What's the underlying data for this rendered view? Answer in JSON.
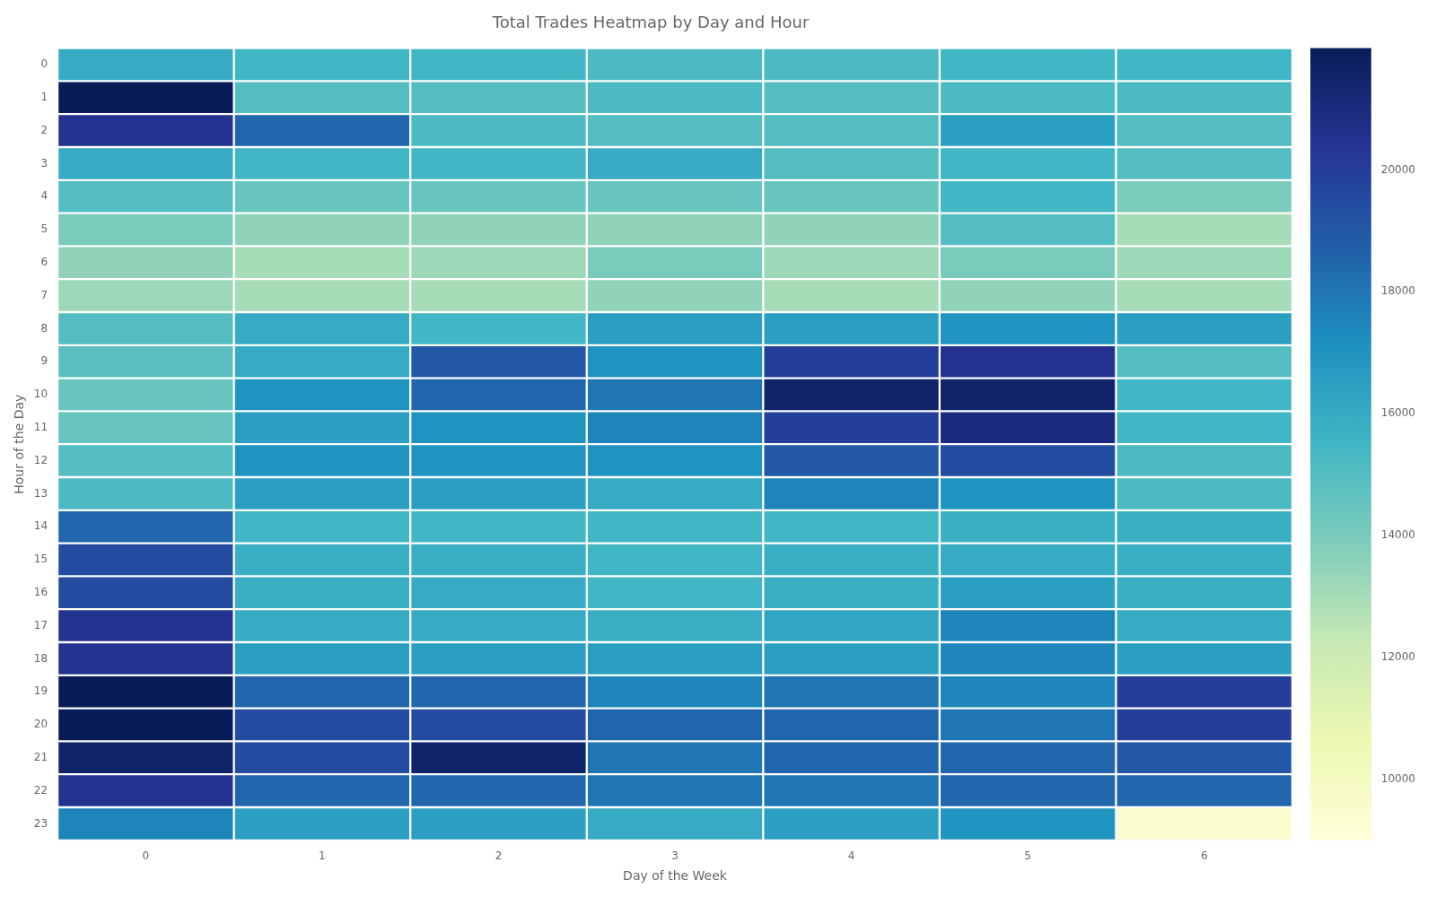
{
  "chart_data": {
    "type": "heatmap",
    "title": "Total Trades Heatmap by Day and Hour",
    "xlabel": "Day of the Week",
    "ylabel": "Hour of the Day",
    "x": [
      0,
      1,
      2,
      3,
      4,
      5,
      6
    ],
    "y": [
      0,
      1,
      2,
      3,
      4,
      5,
      6,
      7,
      8,
      9,
      10,
      11,
      12,
      13,
      14,
      15,
      16,
      17,
      18,
      19,
      20,
      21,
      22,
      23
    ],
    "xlim": [
      -0.5,
      6.5
    ],
    "xticks": [
      0,
      1,
      2,
      3,
      4,
      5,
      6
    ],
    "ylim": [
      23.5,
      -0.5
    ],
    "yticks": [
      0,
      1,
      2,
      3,
      4,
      5,
      6,
      7,
      8,
      9,
      10,
      11,
      12,
      13,
      14,
      15,
      16,
      17,
      18,
      19,
      20,
      21,
      22,
      23
    ],
    "grid": true,
    "colorbar_lim": [
      9000,
      22000
    ],
    "colorbar_ticks": [
      10000,
      12000,
      14000,
      16000,
      18000,
      20000
    ],
    "values": [
      [
        16000,
        15500,
        15500,
        15200,
        15200,
        15500,
        15500
      ],
      [
        22000,
        15000,
        15000,
        15200,
        15000,
        15200,
        15200
      ],
      [
        20500,
        18500,
        15200,
        15000,
        15000,
        16500,
        15000
      ],
      [
        16000,
        15500,
        15500,
        16000,
        15000,
        15500,
        15000
      ],
      [
        15000,
        14500,
        14500,
        14500,
        14500,
        15500,
        14000
      ],
      [
        14000,
        13500,
        13500,
        13500,
        13500,
        15000,
        13000
      ],
      [
        13500,
        13000,
        13200,
        14000,
        13200,
        14000,
        13200
      ],
      [
        13200,
        13000,
        13000,
        13500,
        13000,
        13500,
        13000
      ],
      [
        15000,
        16000,
        15500,
        16500,
        16500,
        17000,
        16500
      ],
      [
        14800,
        16000,
        19000,
        17000,
        20000,
        20500,
        15000
      ],
      [
        14500,
        17000,
        18500,
        18000,
        21500,
        21500,
        15500
      ],
      [
        14500,
        16500,
        17000,
        17500,
        20000,
        21000,
        15500
      ],
      [
        15000,
        17000,
        17000,
        17000,
        19000,
        19500,
        15200
      ],
      [
        15200,
        16500,
        16500,
        16000,
        17500,
        17000,
        15200
      ],
      [
        18500,
        15500,
        15500,
        15500,
        15500,
        15800,
        15800
      ],
      [
        19500,
        15800,
        15800,
        15500,
        15800,
        16000,
        15800
      ],
      [
        19500,
        15800,
        16000,
        15500,
        15800,
        16500,
        15800
      ],
      [
        20500,
        16000,
        16000,
        15800,
        16200,
        17500,
        16000
      ],
      [
        20500,
        16500,
        16500,
        16500,
        16500,
        17500,
        16500
      ],
      [
        22000,
        18500,
        18500,
        17500,
        18000,
        17500,
        20000
      ],
      [
        22000,
        19500,
        19500,
        18500,
        18500,
        18000,
        20000
      ],
      [
        21500,
        19500,
        21500,
        18000,
        18500,
        18500,
        19000
      ],
      [
        20500,
        18500,
        18500,
        18000,
        18000,
        18500,
        18500
      ],
      [
        17500,
        16500,
        16500,
        16000,
        16500,
        17000,
        9500
      ]
    ]
  }
}
